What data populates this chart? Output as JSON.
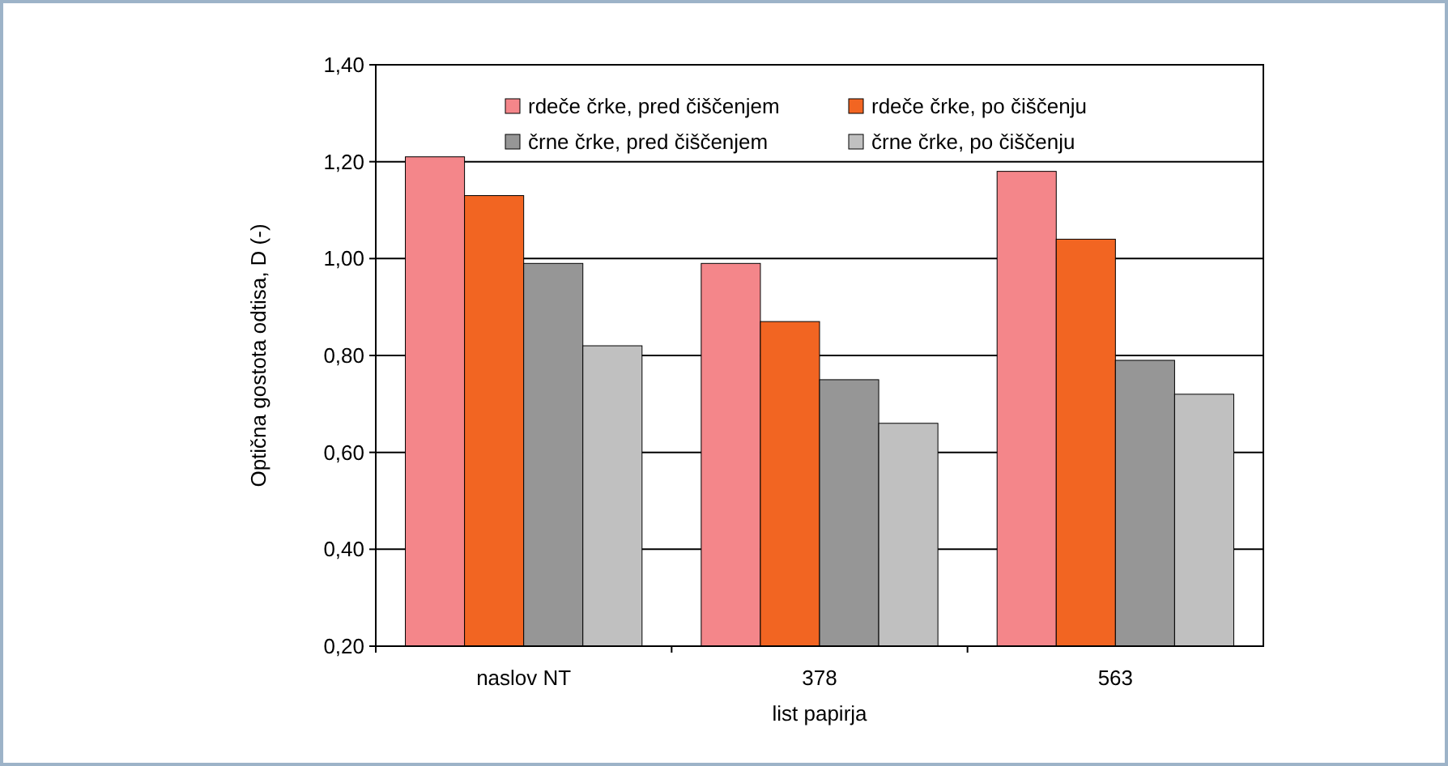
{
  "chart_data": {
    "type": "bar",
    "xlabel": "list papirja",
    "ylabel": "Optična gostota odtisa, D (-)",
    "categories": [
      "naslov NT",
      "378",
      "563"
    ],
    "series": [
      {
        "name": "rdeče črke, pred čiščenjem",
        "color": "#f4868a",
        "values": [
          1.21,
          0.99,
          1.18
        ]
      },
      {
        "name": "rdeče črke, po čiščenju",
        "color": "#f26522",
        "values": [
          1.13,
          0.87,
          1.04
        ]
      },
      {
        "name": "črne črke, pred čiščenjem",
        "color": "#969696",
        "values": [
          0.99,
          0.75,
          0.79
        ]
      },
      {
        "name": "črne črke, po čiščenju",
        "color": "#c0c0c0",
        "values": [
          0.82,
          0.66,
          0.72
        ]
      }
    ],
    "ylim": [
      0.2,
      1.4
    ],
    "yticks": [
      {
        "value": 0.2,
        "label": "0,20"
      },
      {
        "value": 0.4,
        "label": "0,40"
      },
      {
        "value": 0.6,
        "label": "0,60"
      },
      {
        "value": 0.8,
        "label": "0,80"
      },
      {
        "value": 1.0,
        "label": "1,00"
      },
      {
        "value": 1.2,
        "label": "1,20"
      },
      {
        "value": 1.4,
        "label": "1,40"
      }
    ],
    "grid": "y",
    "legend": "top"
  }
}
